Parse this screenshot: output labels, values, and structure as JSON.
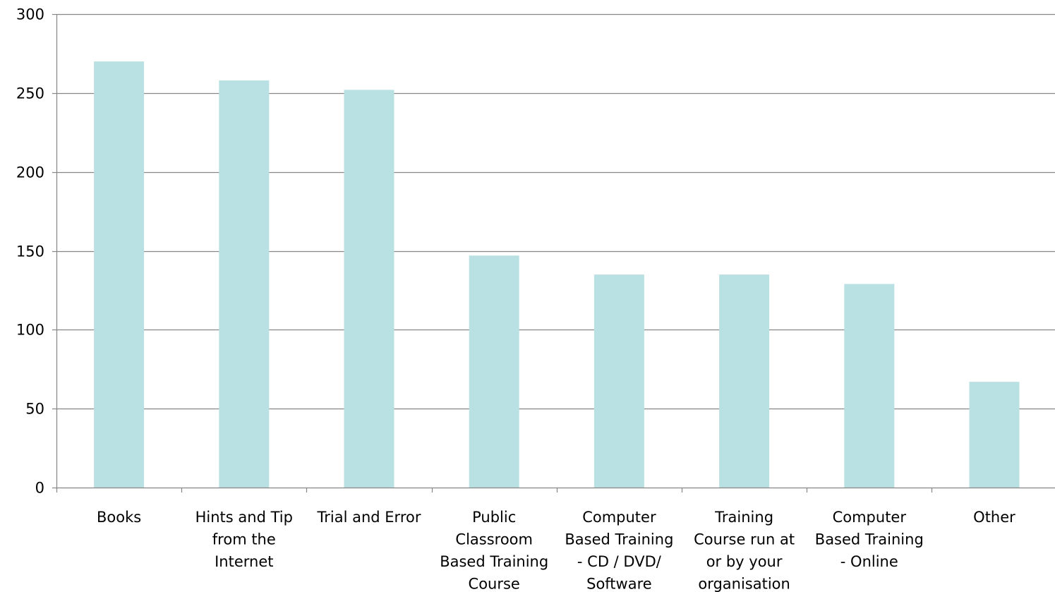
{
  "chart_data": {
    "type": "bar",
    "categories": [
      "Books",
      "Hints and Tip from the Internet",
      "Trial and Error",
      "Public Classroom Based Training Course",
      "Computer Based Training - CD / DVD/ Software",
      "Training Course run at or by your organisation",
      "Computer Based Training - Online",
      "Other"
    ],
    "category_label_lines": [
      [
        "Books"
      ],
      [
        "Hints and Tip",
        "from the",
        "Internet"
      ],
      [
        "Trial and Error"
      ],
      [
        "Public",
        "Classroom",
        "Based Training",
        "Course"
      ],
      [
        "Computer",
        "Based Training",
        "- CD / DVD/",
        "Software"
      ],
      [
        "Training",
        "Course run at",
        "or by your",
        "organisation"
      ],
      [
        "Computer",
        "Based Training",
        "- Online"
      ],
      [
        "Other"
      ]
    ],
    "values": [
      270,
      258,
      252,
      147,
      135,
      135,
      129,
      67
    ],
    "title": "",
    "xlabel": "",
    "ylabel": "",
    "ylim": [
      0,
      300
    ],
    "yticks": [
      0,
      50,
      100,
      150,
      200,
      250,
      300
    ],
    "grid": true,
    "legend": "none",
    "colors": {
      "bar": "#b9e0e2",
      "grid": "#868686",
      "axis": "#868686",
      "text": "#000000"
    }
  }
}
